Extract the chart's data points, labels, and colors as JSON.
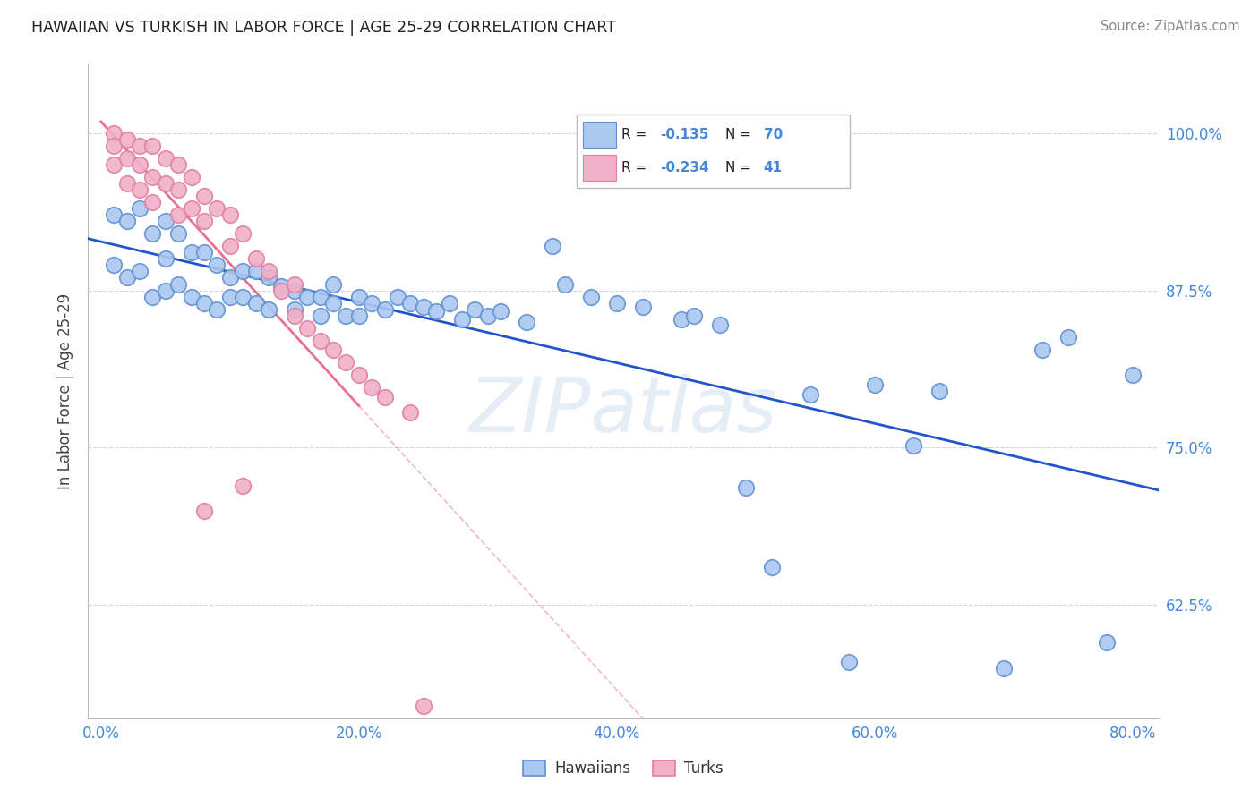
{
  "title": "HAWAIIAN VS TURKISH IN LABOR FORCE | AGE 25-29 CORRELATION CHART",
  "source": "Source: ZipAtlas.com",
  "ylabel": "In Labor Force | Age 25-29",
  "x_tick_labels": [
    "0.0%",
    "20.0%",
    "40.0%",
    "60.0%",
    "80.0%"
  ],
  "x_tick_values": [
    0.0,
    0.2,
    0.4,
    0.6,
    0.8
  ],
  "y_tick_labels": [
    "62.5%",
    "75.0%",
    "87.5%",
    "100.0%"
  ],
  "y_tick_values": [
    0.625,
    0.75,
    0.875,
    1.0
  ],
  "xlim": [
    -0.01,
    0.82
  ],
  "ylim": [
    0.535,
    1.055
  ],
  "hawaiian_color": "#aac8f0",
  "turk_color": "#f0b0c8",
  "hawaiian_edge_color": "#6090d0",
  "turk_edge_color": "#e080a0",
  "hawaiian_line_color": "#2255cc",
  "turk_line_color": "#e87090",
  "R_hawaiian": -0.135,
  "N_hawaiian": 70,
  "R_turk": -0.234,
  "N_turk": 41,
  "background_color": "#ffffff",
  "grid_color": "#cccccc",
  "title_color": "#333333",
  "axis_label_color": "#4488dd",
  "watermark": "ZIPatlas",
  "hawaiian_x": [
    0.01,
    0.01,
    0.02,
    0.02,
    0.03,
    0.03,
    0.04,
    0.04,
    0.05,
    0.05,
    0.05,
    0.06,
    0.06,
    0.07,
    0.07,
    0.08,
    0.08,
    0.09,
    0.09,
    0.1,
    0.1,
    0.11,
    0.11,
    0.12,
    0.12,
    0.13,
    0.13,
    0.14,
    0.15,
    0.15,
    0.16,
    0.17,
    0.17,
    0.18,
    0.18,
    0.19,
    0.2,
    0.2,
    0.21,
    0.22,
    0.23,
    0.24,
    0.25,
    0.26,
    0.27,
    0.28,
    0.29,
    0.3,
    0.31,
    0.33,
    0.35,
    0.36,
    0.38,
    0.4,
    0.42,
    0.45,
    0.46,
    0.48,
    0.5,
    0.52,
    0.55,
    0.58,
    0.6,
    0.63,
    0.65,
    0.7,
    0.73,
    0.75,
    0.78,
    0.8
  ],
  "hawaiian_y": [
    0.935,
    0.895,
    0.93,
    0.885,
    0.94,
    0.89,
    0.92,
    0.87,
    0.93,
    0.9,
    0.875,
    0.92,
    0.88,
    0.905,
    0.87,
    0.905,
    0.865,
    0.895,
    0.86,
    0.885,
    0.87,
    0.89,
    0.87,
    0.89,
    0.865,
    0.885,
    0.86,
    0.878,
    0.875,
    0.86,
    0.87,
    0.87,
    0.855,
    0.865,
    0.88,
    0.855,
    0.87,
    0.855,
    0.865,
    0.86,
    0.87,
    0.865,
    0.862,
    0.858,
    0.865,
    0.852,
    0.86,
    0.855,
    0.858,
    0.85,
    0.91,
    0.88,
    0.87,
    0.865,
    0.862,
    0.852,
    0.855,
    0.848,
    0.718,
    0.655,
    0.792,
    0.58,
    0.8,
    0.752,
    0.795,
    0.575,
    0.828,
    0.838,
    0.595,
    0.808
  ],
  "turk_x": [
    0.01,
    0.01,
    0.01,
    0.02,
    0.02,
    0.02,
    0.03,
    0.03,
    0.03,
    0.04,
    0.04,
    0.04,
    0.05,
    0.05,
    0.06,
    0.06,
    0.06,
    0.07,
    0.07,
    0.08,
    0.08,
    0.09,
    0.1,
    0.1,
    0.11,
    0.12,
    0.13,
    0.14,
    0.15,
    0.15,
    0.16,
    0.17,
    0.18,
    0.19,
    0.2,
    0.21,
    0.22,
    0.24,
    0.25,
    0.11,
    0.08
  ],
  "turk_y": [
    1.0,
    0.99,
    0.975,
    0.995,
    0.98,
    0.96,
    0.99,
    0.975,
    0.955,
    0.99,
    0.965,
    0.945,
    0.98,
    0.96,
    0.975,
    0.955,
    0.935,
    0.965,
    0.94,
    0.95,
    0.93,
    0.94,
    0.935,
    0.91,
    0.92,
    0.9,
    0.89,
    0.875,
    0.88,
    0.855,
    0.845,
    0.835,
    0.828,
    0.818,
    0.808,
    0.798,
    0.79,
    0.778,
    0.545,
    0.72,
    0.7
  ]
}
